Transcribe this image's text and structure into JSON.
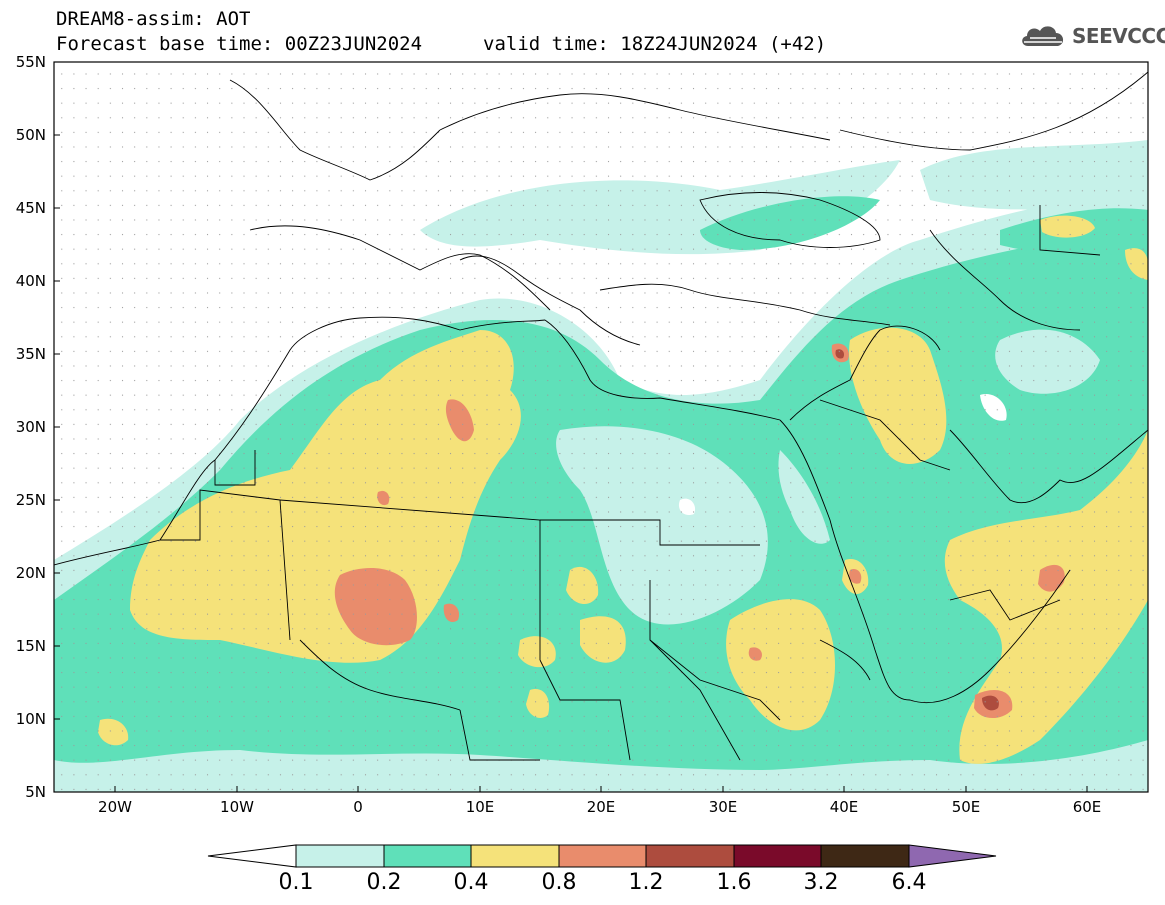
{
  "header": {
    "line1": "DREAM8-assim: AOT",
    "line2": "Forecast base time: 00Z23JUN2024",
    "valid": "valid time: 18Z24JUN2024 (+42)",
    "brand": "SEEVCCC",
    "brand_icon": "cloud-icon"
  },
  "map": {
    "variable": "AOT",
    "lon_range": [
      -25,
      65
    ],
    "lat_range": [
      5,
      55
    ],
    "lat_labels": [
      "55N",
      "50N",
      "45N",
      "40N",
      "35N",
      "30N",
      "25N",
      "20N",
      "15N",
      "10N",
      "5N"
    ],
    "lon_labels": [
      "20W",
      "10W",
      "0",
      "10E",
      "20E",
      "30E",
      "40E",
      "50E",
      "60E"
    ]
  },
  "colorbar": {
    "levels": [
      "0.1",
      "0.2",
      "0.4",
      "0.8",
      "1.2",
      "1.6",
      "3.2",
      "6.4"
    ],
    "colors": [
      "#c6f1e9",
      "#5fe0b9",
      "#f5e27a",
      "#e98c6c",
      "#ad4c3e",
      "#7a0a2a",
      "#3e2815",
      "#8f68b0"
    ]
  }
}
